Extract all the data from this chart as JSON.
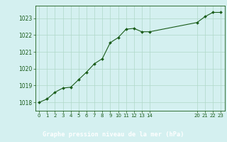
{
  "x_values": [
    0,
    1,
    2,
    3,
    4,
    5,
    6,
    7,
    8,
    9,
    10,
    11,
    12,
    13,
    14,
    20,
    21,
    22,
    23
  ],
  "y_values": [
    1018.0,
    1018.2,
    1018.6,
    1018.85,
    1018.9,
    1019.35,
    1019.8,
    1020.3,
    1020.6,
    1021.55,
    1021.85,
    1022.35,
    1022.4,
    1022.2,
    1022.2,
    1022.75,
    1023.1,
    1023.35,
    1023.35
  ],
  "line_color": "#1a5c1a",
  "marker_color": "#1a5c1a",
  "bg_color": "#d4f0f0",
  "grid_color": "#b0d8c8",
  "title": "Graphe pression niveau de la mer (hPa)",
  "title_color": "#ffffff",
  "title_bg": "#2a6e2a",
  "ylim": [
    1017.5,
    1023.75
  ],
  "yticks": [
    1018,
    1019,
    1020,
    1021,
    1022,
    1023
  ],
  "xlim": [
    -0.5,
    23.5
  ]
}
